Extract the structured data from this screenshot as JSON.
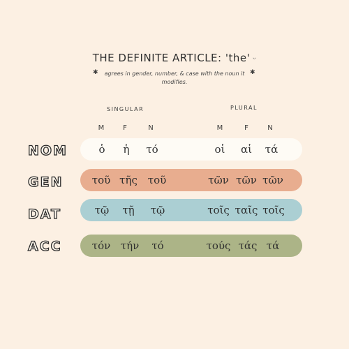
{
  "header": {
    "title": "THE DEFINITE ARTICLE: 'the'",
    "title_mark": "ᵕ",
    "subtitle": "agrees in gender, number, & case with the noun it modifies.",
    "star": "✱"
  },
  "groups": {
    "singular": "SINGULAR",
    "plural": "PLURAL"
  },
  "columns": [
    "M",
    "F",
    "N",
    "M",
    "F",
    "N"
  ],
  "rows": [
    {
      "case": "NOM",
      "color": "#fefbf5",
      "forms": [
        "ὁ",
        "ἡ",
        "τό",
        "οἱ",
        "αἱ",
        "τά"
      ]
    },
    {
      "case": "GEN",
      "color": "#e8ad8f",
      "forms": [
        "τοῦ",
        "τῆς",
        "τοῦ",
        "τῶν",
        "τῶν",
        "τῶν"
      ]
    },
    {
      "case": "DAT",
      "color": "#abcfd3",
      "forms": [
        "τῷ",
        "τῇ",
        "τῷ",
        "τοῖς",
        "ταῖς",
        "τοῖς"
      ]
    },
    {
      "case": "ACC",
      "color": "#acb487",
      "forms": [
        "τόν",
        "τήν",
        "τό",
        "τούς",
        "τάς",
        "τά"
      ]
    }
  ]
}
